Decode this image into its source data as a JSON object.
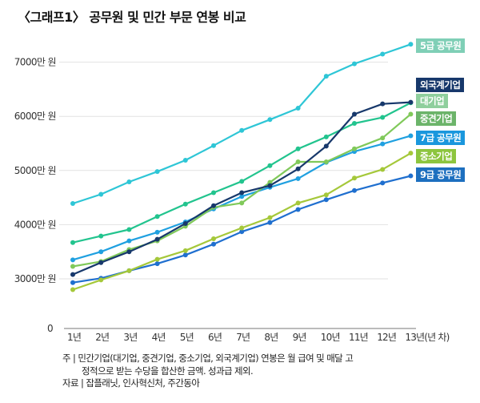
{
  "title": "〈그래프1〉 공무원 및 민간 부문 연봉 비교",
  "chart_data": {
    "type": "line",
    "title": "〈그래프1〉 공무원 및 민간 부문 연봉 비교",
    "xlabel": "(년 차)",
    "ylabel": "",
    "unit": "만 원",
    "categories": [
      "1년",
      "2년",
      "3년",
      "4년",
      "5년",
      "6년",
      "7년",
      "8년",
      "9년",
      "10년",
      "11년",
      "12년",
      "13년(년 차)"
    ],
    "x": [
      1,
      2,
      3,
      4,
      5,
      6,
      7,
      8,
      9,
      10,
      11,
      12,
      13
    ],
    "yticks": [
      {
        "value": 0,
        "label": "0"
      },
      {
        "value": 3000,
        "label": "3000만 원"
      },
      {
        "value": 4000,
        "label": "4000만 원"
      },
      {
        "value": 5000,
        "label": "5000만 원"
      },
      {
        "value": 6000,
        "label": "6000만 원"
      },
      {
        "value": 7000,
        "label": "7000만 원"
      }
    ],
    "ylim": [
      0,
      7400
    ],
    "axis_break": "between 0 and 3000",
    "grid": true,
    "legend_placement": "right",
    "series": [
      {
        "name": "5급 공무원",
        "line_color": "#2ec6d6",
        "label_color": "#7fcfb6",
        "values": [
          4390,
          4560,
          4790,
          4980,
          5190,
          5460,
          5740,
          5940,
          6150,
          6740,
          6970,
          7150,
          7330
        ]
      },
      {
        "name": "외국계기업",
        "line_color": "#17386b",
        "label_color": "#17386b",
        "values": [
          3080,
          3300,
          3500,
          3730,
          4020,
          4350,
          4590,
          4720,
          5030,
          5450,
          6040,
          6230,
          6260
        ]
      },
      {
        "name": "대기업",
        "line_color": "#22c48e",
        "label_color": "#8fcf9d",
        "values": [
          3670,
          3790,
          3910,
          4150,
          4380,
          4590,
          4800,
          5090,
          5400,
          5620,
          5870,
          5980,
          6250
        ]
      },
      {
        "name": "중견기업",
        "line_color": "#80c95a",
        "label_color": "#6cb46a",
        "values": [
          3230,
          3320,
          3540,
          3700,
          3970,
          4320,
          4400,
          4780,
          5160,
          5160,
          5400,
          5600,
          6040
        ]
      },
      {
        "name": "7급 공무원",
        "line_color": "#1fa0e0",
        "label_color": "#1a97dd",
        "values": [
          3350,
          3500,
          3700,
          3860,
          4050,
          4290,
          4520,
          4690,
          4850,
          5150,
          5350,
          5490,
          5640
        ]
      },
      {
        "name": "중소기업",
        "line_color": "#a5c83a",
        "label_color": "#8dc53e",
        "values": [
          2800,
          2980,
          3150,
          3360,
          3520,
          3740,
          3940,
          4130,
          4400,
          4550,
          4860,
          5020,
          5320
        ]
      },
      {
        "name": "9급 공무원",
        "line_color": "#1f6fcf",
        "label_color": "#1d6fbf",
        "values": [
          2930,
          3010,
          3150,
          3280,
          3440,
          3640,
          3870,
          4040,
          4280,
          4460,
          4630,
          4770,
          4900
        ]
      }
    ]
  },
  "notes": {
    "line1": "주 | 민간기업(대기업, 중견기업, 중소기업, 외국계기업) 연봉은 월 급여 및 매달 고",
    "line2": "정적으로 받는 수당을 합산한 금액. 성과급 제외.",
    "source": "자료 | 잡플래닛, 인사혁신처, 주간동아"
  }
}
